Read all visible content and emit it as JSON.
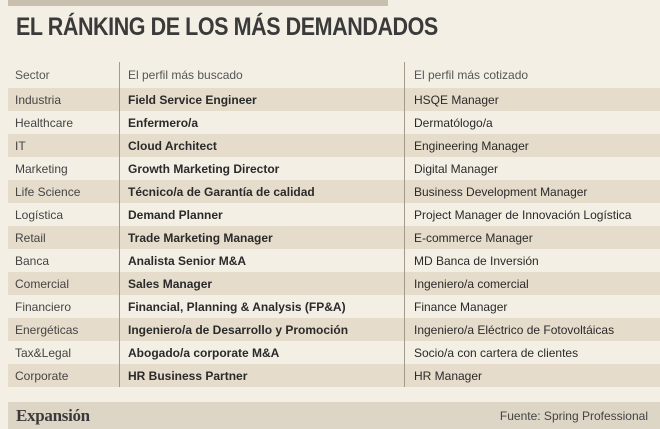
{
  "title": "EL RÁNKING DE LOS MÁS DEMANDADOS",
  "table": {
    "headers": [
      "Sector",
      "El perfil más buscado",
      "El perfil más cotizado"
    ],
    "rows": [
      [
        "Industria",
        "Field Service Engineer",
        "HSQE Manager"
      ],
      [
        "Healthcare",
        "Enfermero/a",
        "Dermatólogo/a"
      ],
      [
        "IT",
        "Cloud Architect",
        "Engineering Manager"
      ],
      [
        "Marketing",
        "Growth Marketing Director",
        "Digital Manager"
      ],
      [
        "Life Science",
        "Técnico/a de Garantía de calidad",
        "Business Development Manager"
      ],
      [
        "Logística",
        "Demand Planner",
        "Project Manager de Innovación Logística"
      ],
      [
        "Retail",
        "Trade Marketing Manager",
        "E-commerce Manager"
      ],
      [
        "Banca",
        "Analista Senior M&A",
        "MD Banca de Inversión"
      ],
      [
        "Comercial",
        "Sales Manager",
        "Ingeniero/a comercial"
      ],
      [
        "Financiero",
        "Financial, Planning & Analysis (FP&A)",
        "Finance Manager"
      ],
      [
        "Energéticas",
        "Ingeniero/a de Desarrollo y Promoción",
        "Ingeniero/a Eléctrico de Fotovoltáicas"
      ],
      [
        "Tax&Legal",
        "Abogado/a corporate M&A",
        "Socio/a con cartera de clientes"
      ],
      [
        "Corporate",
        "HR Business Partner",
        "HR Manager"
      ]
    ]
  },
  "footer": {
    "brand": "Expansión",
    "source": "Fuente: Spring Professional"
  }
}
